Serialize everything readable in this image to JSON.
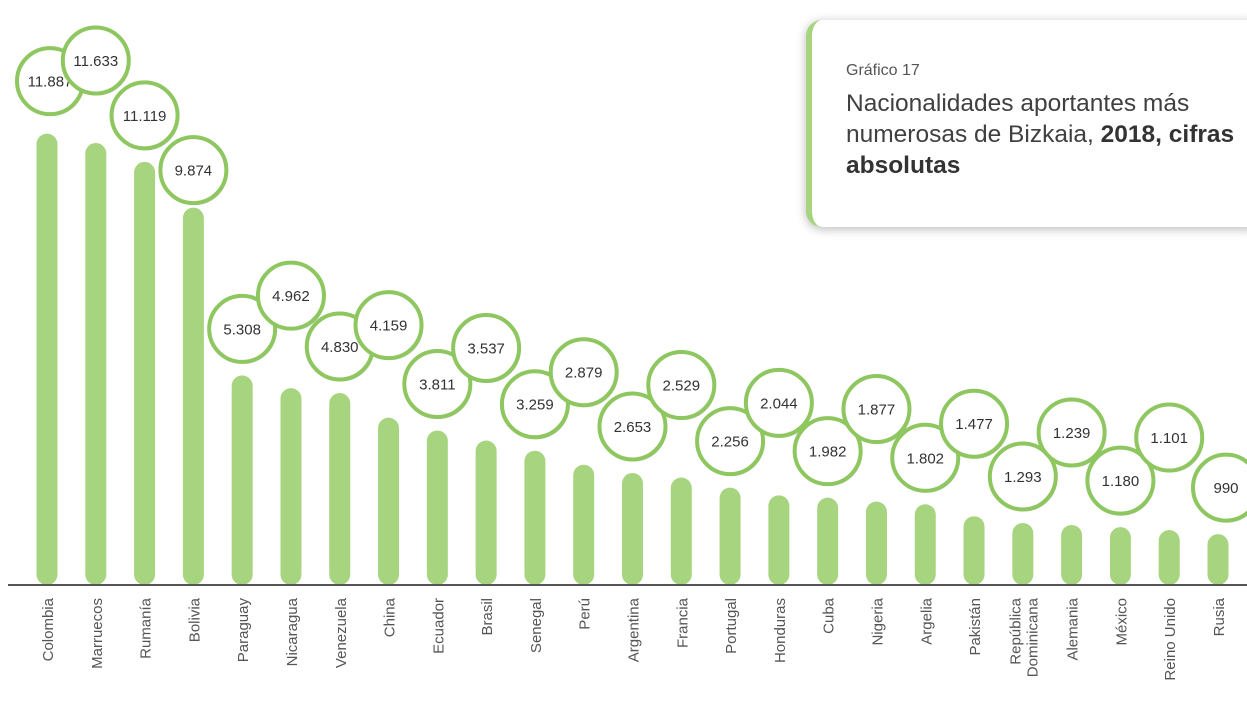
{
  "title_card": {
    "subtitle": "Gráfico 17",
    "title_part1": "Nacionalidades aportantes más numerosas de Bizkaia, ",
    "title_part2": "2018, cifras absolutas"
  },
  "colors": {
    "bar": "#a7d47f",
    "bubble_border": "#8ec65f",
    "axis": "#555555",
    "text": "#333333"
  },
  "chart_data": {
    "type": "bar",
    "title": "Nacionalidades aportantes más numerosas de Bizkaia, 2018, cifras absolutas",
    "subtitle": "Gráfico 17",
    "xlabel": "",
    "ylabel": "",
    "grid": false,
    "ylim": [
      0,
      12000
    ],
    "categories": [
      "Colombia",
      "Marruecos",
      "Rumanía",
      "Bolivia",
      "Paraguay",
      "Nicaragua",
      "Venezuela",
      "China",
      "Ecuador",
      "Brasil",
      "Senegal",
      "Perú",
      "Argentina",
      "Francia",
      "Portugal",
      "Honduras",
      "Cuba",
      "Nigeria",
      "Argelia",
      "Pakistán",
      "República Dominicana",
      "Alemania",
      "México",
      "Reino Unido",
      "Rusia"
    ],
    "values": [
      11887,
      11633,
      11119,
      9874,
      5308,
      4962,
      4830,
      4159,
      3811,
      3537,
      3259,
      2879,
      2653,
      2529,
      2256,
      2044,
      1982,
      1877,
      1802,
      1477,
      1293,
      1239,
      1180,
      1101,
      990
    ],
    "value_labels": [
      "11.887",
      "11.633",
      "11.119",
      "9.874",
      "5.308",
      "4.962",
      "4.830",
      "4.159",
      "3.811",
      "3.537",
      "3.259",
      "2.879",
      "2.653",
      "2.529",
      "2.256",
      "2.044",
      "1.982",
      "1.877",
      "1.802",
      "1.477",
      "1.293",
      "1.239",
      "1.180",
      "1.101",
      "990"
    ],
    "category_label_lines": [
      [
        "Colombia"
      ],
      [
        "Marruecos"
      ],
      [
        "Rumanía"
      ],
      [
        "Bolivia"
      ],
      [
        "Paraguay"
      ],
      [
        "Nicaragua"
      ],
      [
        "Venezuela"
      ],
      [
        "China"
      ],
      [
        "Ecuador"
      ],
      [
        "Brasil"
      ],
      [
        "Senegal"
      ],
      [
        "Perú"
      ],
      [
        "Argentina"
      ],
      [
        "Francia"
      ],
      [
        "Portugal"
      ],
      [
        "Honduras"
      ],
      [
        "Cuba"
      ],
      [
        "Nigeria"
      ],
      [
        "Argelia"
      ],
      [
        "Pakistán"
      ],
      [
        "República",
        "Dominicana"
      ],
      [
        "Alemania"
      ],
      [
        "México"
      ],
      [
        "Reino Unido"
      ],
      [
        "Rusia"
      ]
    ]
  }
}
